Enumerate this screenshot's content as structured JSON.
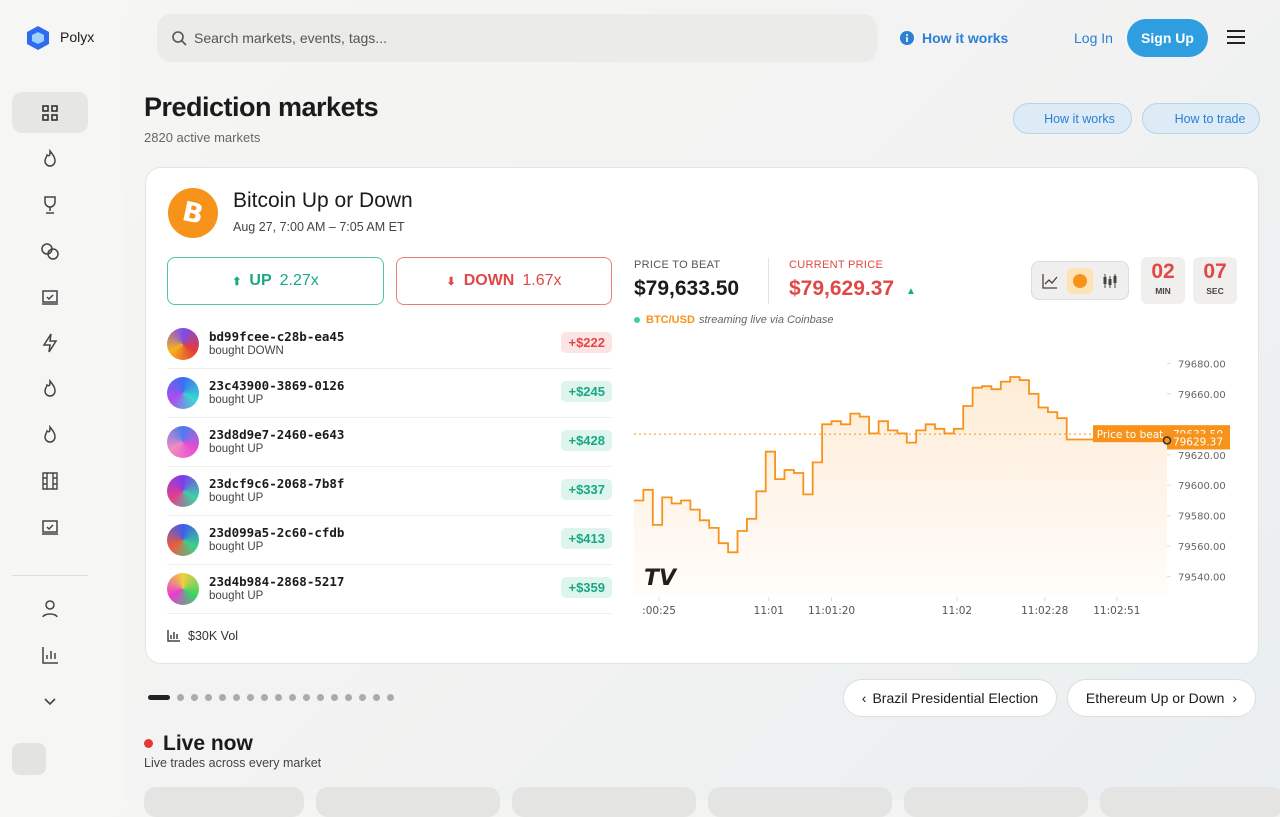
{
  "header": {
    "brand": "Polyx",
    "search_placeholder": "Search markets, events, tags...",
    "how_it_works": "How it works",
    "login": "Log In",
    "signup": "Sign Up"
  },
  "page": {
    "title": "Prediction markets",
    "subtitle": "2820 active markets",
    "how_it_works": "How it works",
    "how_to_trade": "How to trade"
  },
  "market": {
    "title": "Bitcoin Up or Down",
    "time": "Aug 27, 7:00 AM – 7:05 AM ET",
    "up": {
      "label": "UP",
      "odds": "2.27x"
    },
    "down": {
      "label": "DOWN",
      "odds": "1.67x"
    },
    "trades": [
      {
        "id": "bd99fcee-c28b-ea45",
        "action": "bought DOWN",
        "amount": "+$222"
      },
      {
        "id": "23c43900-3869-0126",
        "action": "bought UP",
        "amount": "+$245"
      },
      {
        "id": "23d8d9e7-2460-e643",
        "action": "bought UP",
        "amount": "+$428"
      },
      {
        "id": "23dcf9c6-2068-7b8f",
        "action": "bought UP",
        "amount": "+$337"
      },
      {
        "id": "23d099a5-2c60-cfdb",
        "action": "bought UP",
        "amount": "+$413"
      },
      {
        "id": "23d4b984-2868-5217",
        "action": "bought UP",
        "amount": "+$359"
      }
    ],
    "volume": "$30K Vol",
    "price_to_beat_label": "PRICE TO BEAT",
    "price_to_beat": "$79,633.50",
    "current_price_label": "CURRENT PRICE",
    "current_price": "$79,629.37",
    "pair": "BTC/USD",
    "stream_note": "streaming live via Coinbase",
    "timer": {
      "min": "02",
      "min_label": "MIN",
      "sec": "07",
      "sec_label": "SEC"
    }
  },
  "chart_data": {
    "type": "line",
    "color": "#f7931a",
    "x": [
      17,
      20,
      23,
      26,
      29,
      32,
      35,
      38,
      41,
      44,
      47,
      50,
      53,
      56,
      59,
      62,
      65,
      68,
      71,
      74,
      77,
      80,
      83,
      86,
      89,
      92,
      95,
      98,
      101,
      104,
      107,
      110,
      113,
      116,
      119,
      122,
      125,
      128,
      131,
      134,
      137,
      140,
      143,
      146,
      149,
      152,
      155,
      158,
      170,
      187
    ],
    "values": [
      79590,
      79597,
      79574,
      79592,
      79588,
      79590,
      79584,
      79577,
      79572,
      79562,
      79556,
      79570,
      79578,
      79596,
      79622,
      79604,
      79610,
      79608,
      79594,
      79615,
      79640,
      79642,
      79640,
      79647,
      79645,
      79634,
      79642,
      79636,
      79634,
      79628,
      79636,
      79640,
      79637,
      79634,
      79637,
      79652,
      79664,
      79665,
      79663,
      79668,
      79671,
      79669,
      79660,
      79651,
      79648,
      79644,
      79630,
      79630,
      79630,
      79629.37
    ],
    "xlim": [
      17,
      187
    ],
    "ylim": [
      79528,
      79692
    ],
    "xticks": [
      {
        "value": 25,
        "label": ":00:25"
      },
      {
        "value": 60,
        "label": "11:01"
      },
      {
        "value": 80,
        "label": "11:01:20"
      },
      {
        "value": 120,
        "label": "11:02"
      },
      {
        "value": 148,
        "label": "11:02:28"
      },
      {
        "value": 171,
        "label": "11:02:51"
      }
    ],
    "yticks": [
      {
        "value": 79540,
        "label": "79540.00"
      },
      {
        "value": 79560,
        "label": "79560.00"
      },
      {
        "value": 79580,
        "label": "79580.00"
      },
      {
        "value": 79600,
        "label": "79600.00"
      },
      {
        "value": 79620,
        "label": "79620.00"
      },
      {
        "value": 79660,
        "label": "79660.00"
      },
      {
        "value": 79680,
        "label": "79680.00"
      }
    ],
    "reference": {
      "name": "Price to beat",
      "value": 79633.5,
      "label": "79633.50"
    },
    "last": {
      "value": 79629.37,
      "label": "79629.37"
    }
  },
  "carousel": {
    "prev": "Brazil Presidential Election",
    "next": "Ethereum Up or Down"
  },
  "live": {
    "title": "Live now",
    "subtitle": "Live trades across every market"
  }
}
